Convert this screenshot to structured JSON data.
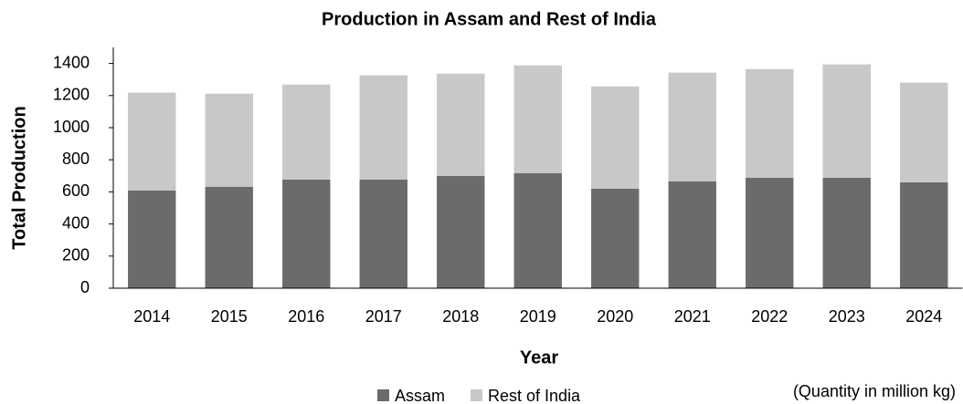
{
  "chart_data": {
    "type": "stacked_bar",
    "title": "Production in Assam and Rest of India",
    "x_label": "Year",
    "y_label": "Total Production",
    "annotation": "(Quantity in million kg)",
    "categories": [
      "2014",
      "2015",
      "2016",
      "2017",
      "2018",
      "2019",
      "2020",
      "2021",
      "2022",
      "2023",
      "2024"
    ],
    "series": [
      {
        "name": "Assam",
        "color": "#6b6b6b",
        "values": [
          609,
          632,
          677,
          677,
          700,
          717,
          620,
          666,
          688,
          688,
          660
        ]
      },
      {
        "name": "Rest of India",
        "color": "#c8c8c8",
        "values": [
          609,
          580,
          592,
          649,
          637,
          671,
          637,
          677,
          677,
          706,
          620
        ]
      }
    ],
    "ylim": [
      0,
      1500
    ],
    "yticks": [
      0,
      200,
      400,
      600,
      800,
      1000,
      1200,
      1400
    ],
    "grid": false,
    "legend": "bottom"
  }
}
